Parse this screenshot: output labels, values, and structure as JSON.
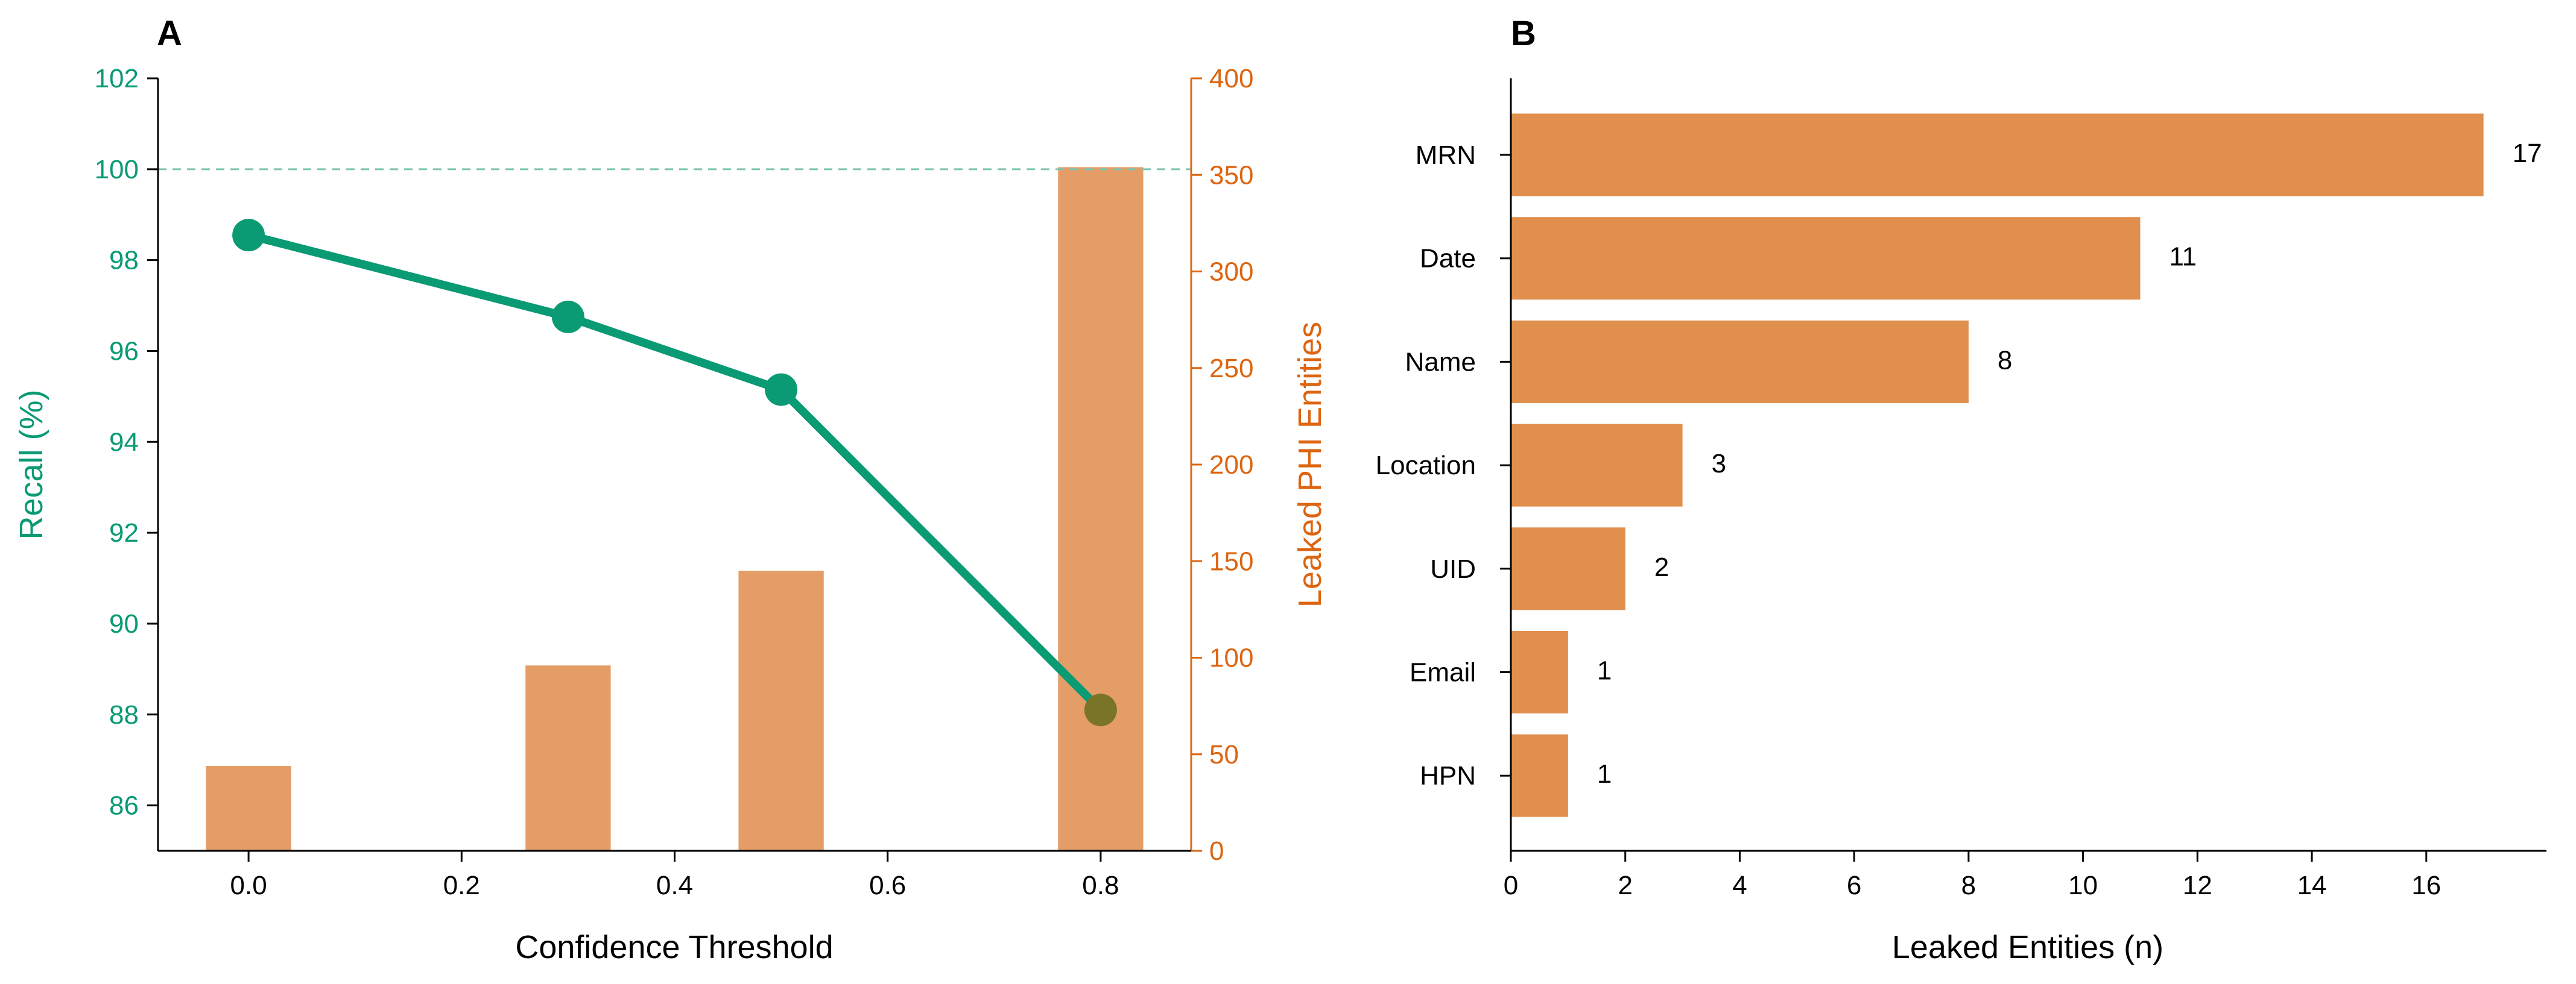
{
  "colors": {
    "recall": "#0a9a74",
    "leaked_axis": "#dd6510",
    "bar_a": "#e49d67",
    "bar_b": "#e08f4c",
    "ref_line": "#7cc4b1",
    "last_point": "#7a7428",
    "text": "#000000"
  },
  "chart_data": [
    {
      "panel": "A",
      "type": "bar+line",
      "xlabel": "Confidence Threshold",
      "x_ticks": [
        "0.0",
        "0.2",
        "0.4",
        "0.6",
        "0.8"
      ],
      "xlim": [
        -0.085,
        0.885
      ],
      "y_left": {
        "label": "Recall (%)",
        "lim": [
          85,
          102
        ],
        "ticks": [
          "86",
          "88",
          "90",
          "92",
          "94",
          "96",
          "98",
          "100",
          "102"
        ]
      },
      "y_right": {
        "label": "Leaked PHI Entities",
        "lim": [
          0,
          400
        ],
        "ticks": [
          "0",
          "50",
          "100",
          "150",
          "200",
          "250",
          "300",
          "350",
          "400"
        ]
      },
      "reference_line_recall": 100,
      "bar_width": 0.08,
      "series": [
        {
          "name": "Leaked PHI Entities",
          "axis": "right",
          "kind": "bar",
          "x": [
            0.0,
            0.3,
            0.5,
            0.8
          ],
          "values": [
            44,
            96,
            145,
            354
          ]
        },
        {
          "name": "Recall (%)",
          "axis": "left",
          "kind": "line",
          "x": [
            0.0,
            0.3,
            0.5,
            0.8
          ],
          "values": [
            98.55,
            96.75,
            95.15,
            88.1
          ]
        }
      ]
    },
    {
      "panel": "B",
      "type": "bar",
      "orientation": "horizontal",
      "xlabel": "Leaked Entities (n)",
      "x_ticks": [
        "0",
        "2",
        "4",
        "6",
        "8",
        "10",
        "12",
        "14",
        "16"
      ],
      "xlim": [
        0,
        18.1
      ],
      "categories": [
        "MRN",
        "Date",
        "Name",
        "Location",
        "UID",
        "Email",
        "HPN"
      ],
      "values": [
        17,
        11,
        8,
        3,
        2,
        1,
        1
      ],
      "data_labels": [
        "17",
        "11",
        "8",
        "3",
        "2",
        "1",
        "1"
      ]
    }
  ]
}
